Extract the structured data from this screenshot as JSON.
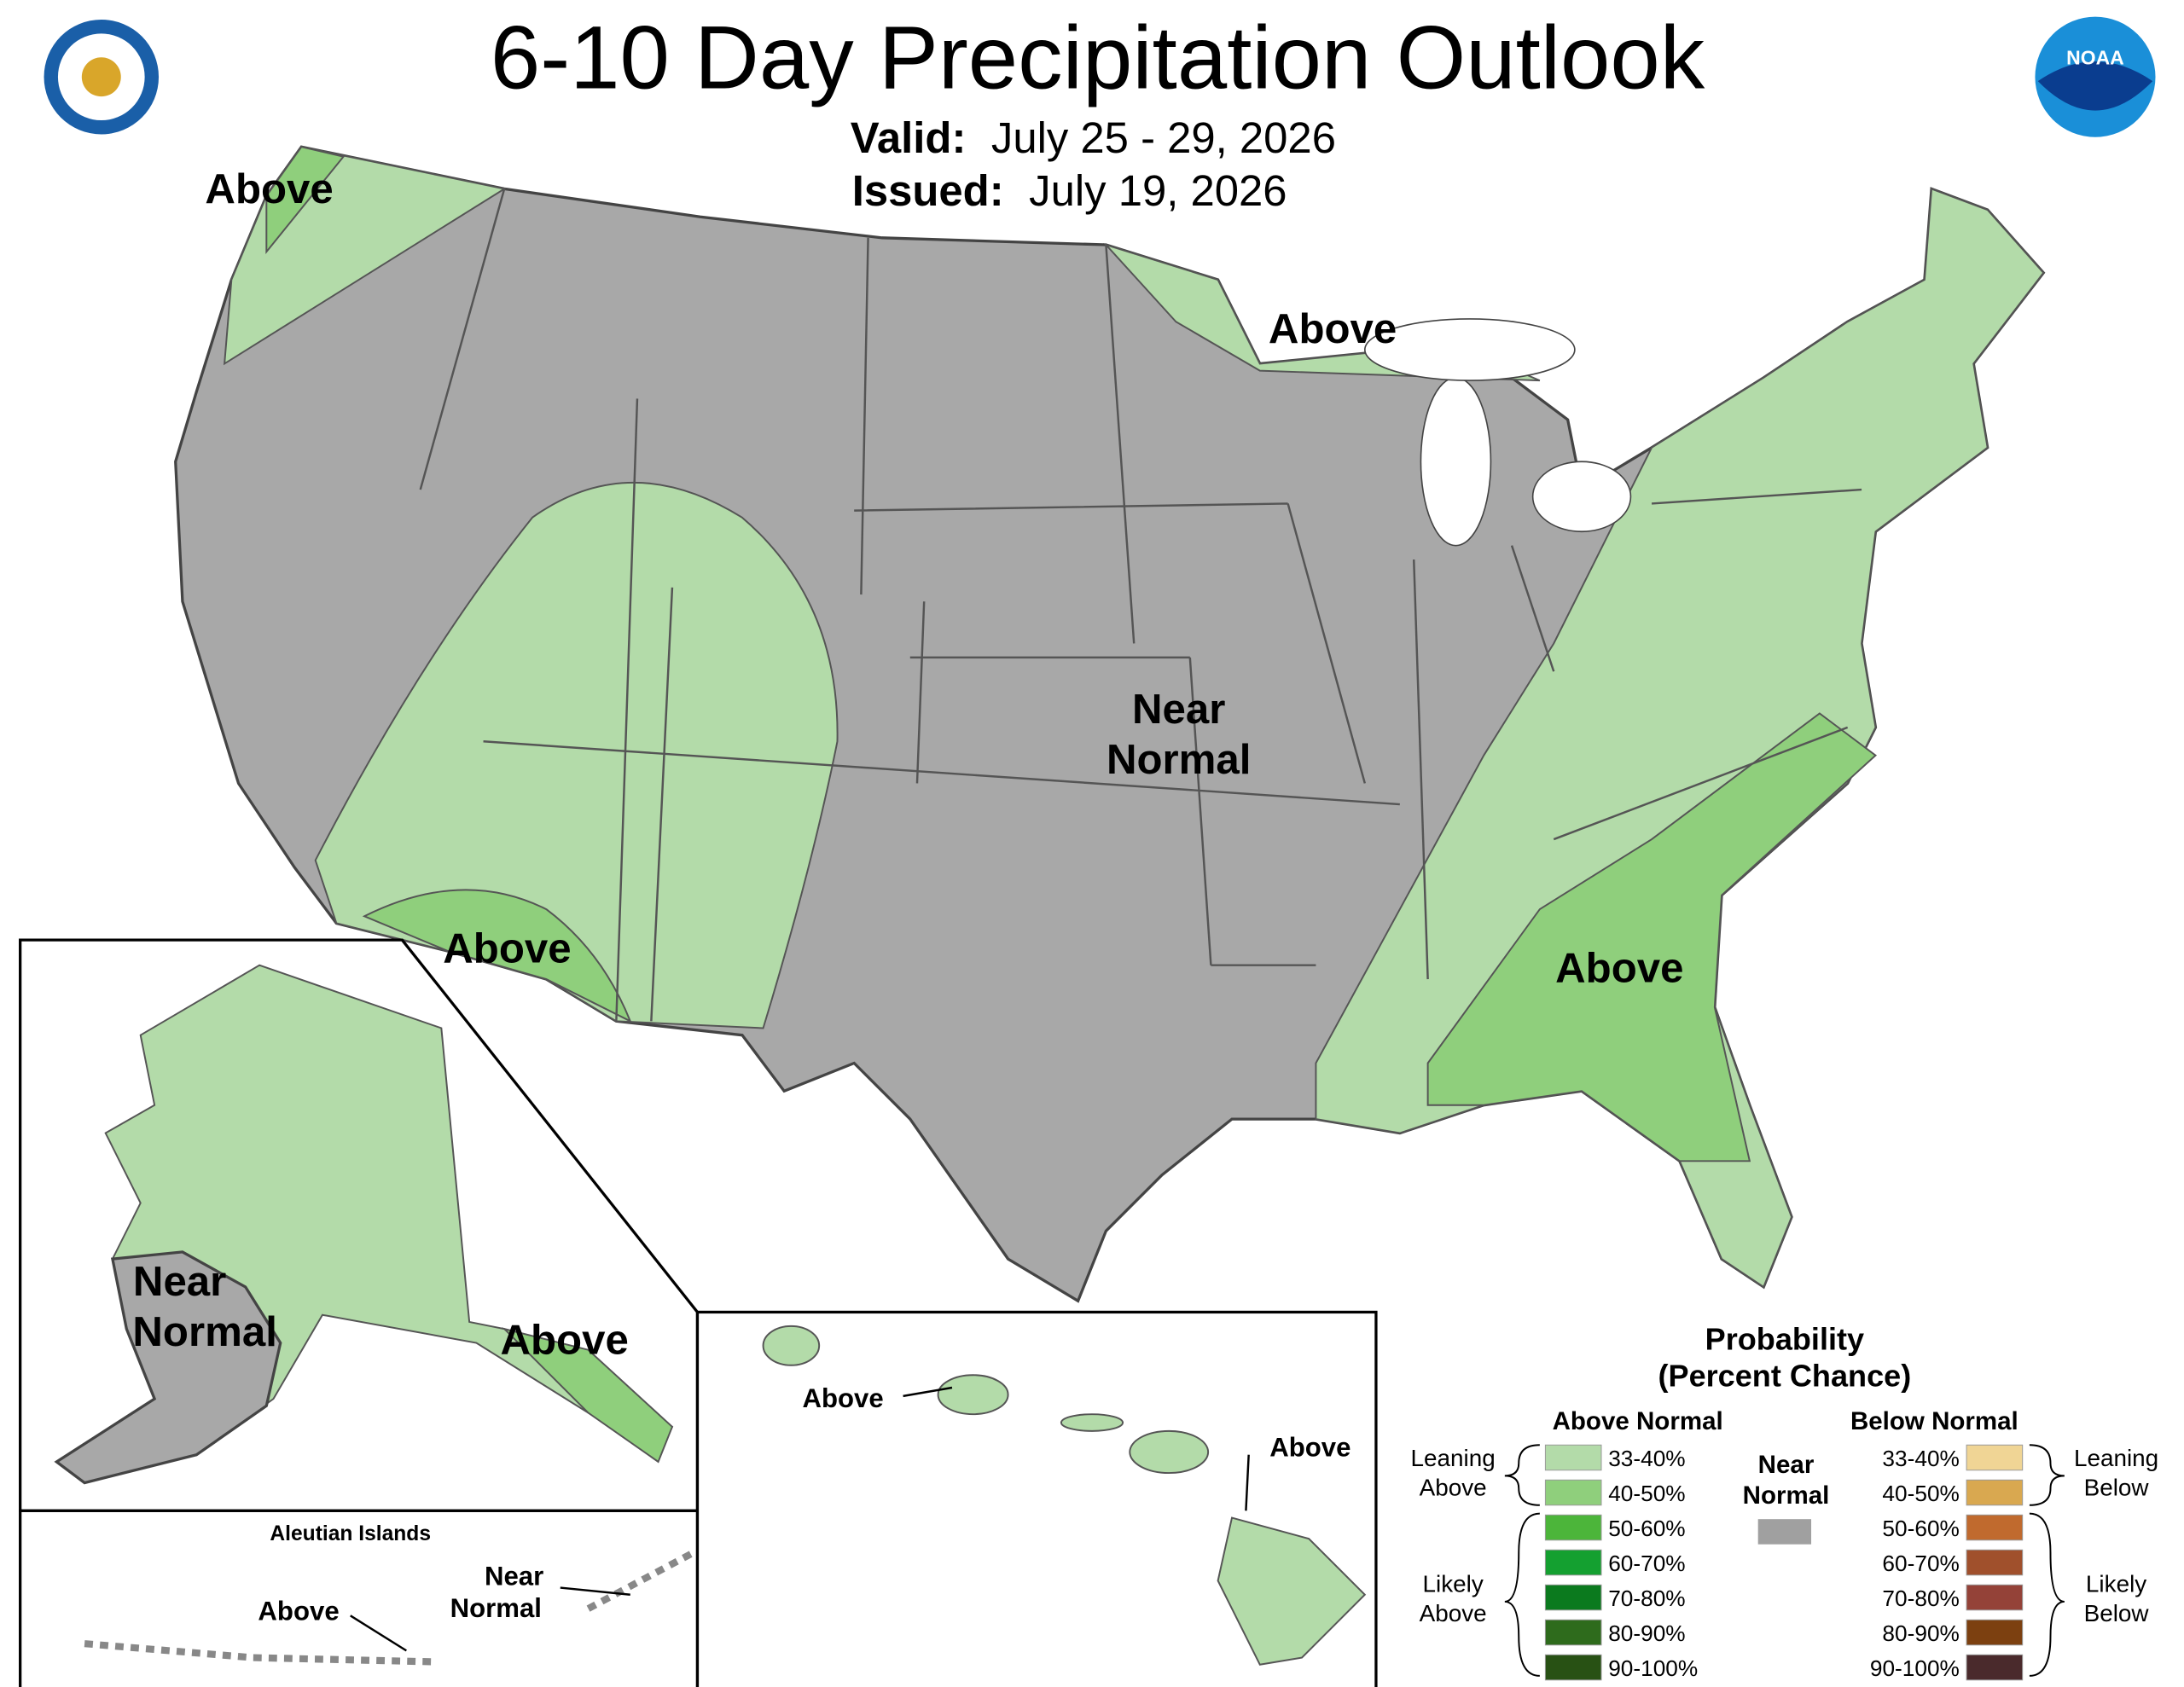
{
  "header": {
    "title": "6-10 Day Precipitation Outlook",
    "valid_label": "Valid:",
    "valid": "July 25 - 29, 2026",
    "issued_label": "Issued:",
    "issued": "July 19, 2026",
    "noaa_logo": "NOAA"
  },
  "map_labels": [
    {
      "lines": [
        "Above"
      ]
    },
    {
      "lines": [
        "Above"
      ]
    },
    {
      "lines": [
        "Near",
        "Normal"
      ]
    },
    {
      "lines": [
        "Above"
      ]
    },
    {
      "lines": [
        "Above"
      ]
    }
  ],
  "alaska_labels": [
    {
      "lines": [
        "Near",
        "Normal"
      ]
    },
    {
      "lines": [
        "Above"
      ]
    }
  ],
  "aleutian": {
    "title": "Aleutian Islands",
    "labels": [
      {
        "lines": [
          "Above"
        ]
      },
      {
        "lines": [
          "Near",
          "Normal"
        ]
      }
    ]
  },
  "hawaii_labels": [
    {
      "lines": [
        "Above"
      ]
    },
    {
      "lines": [
        "Above"
      ]
    }
  ],
  "legend": {
    "title": [
      "Probability",
      "(Percent Chance)"
    ],
    "above": {
      "heading": "Above Normal",
      "bins": [
        {
          "label": "33-40%",
          "color": "#b3dba9"
        },
        {
          "label": "40-50%",
          "color": "#8fcf7c"
        },
        {
          "label": "50-60%",
          "color": "#4cb53a"
        },
        {
          "label": "60-70%",
          "color": "#14a030"
        },
        {
          "label": "70-80%",
          "color": "#0b7a1e"
        },
        {
          "label": "80-90%",
          "color": "#2e6b1c"
        },
        {
          "label": "90-100%",
          "color": "#285114"
        }
      ]
    },
    "near": {
      "heading": [
        "Near",
        "Normal"
      ],
      "color": "#a0a0a0"
    },
    "below": {
      "heading": "Below Normal",
      "bins": [
        {
          "label": "33-40%",
          "color": "#f0d595"
        },
        {
          "label": "40-50%",
          "color": "#d9a850"
        },
        {
          "label": "50-60%",
          "color": "#c06a2e"
        },
        {
          "label": "60-70%",
          "color": "#a0502c"
        },
        {
          "label": "70-80%",
          "color": "#944238"
        },
        {
          "label": "80-90%",
          "color": "#7c4010"
        },
        {
          "label": "90-100%",
          "color": "#4a2a2c"
        }
      ]
    },
    "brackets": {
      "leaning_above": [
        "Leaning",
        "Above"
      ],
      "likely_above": [
        "Likely",
        "Above"
      ],
      "leaning_below": [
        "Leaning",
        "Below"
      ],
      "likely_below": [
        "Likely",
        "Below"
      ]
    }
  }
}
